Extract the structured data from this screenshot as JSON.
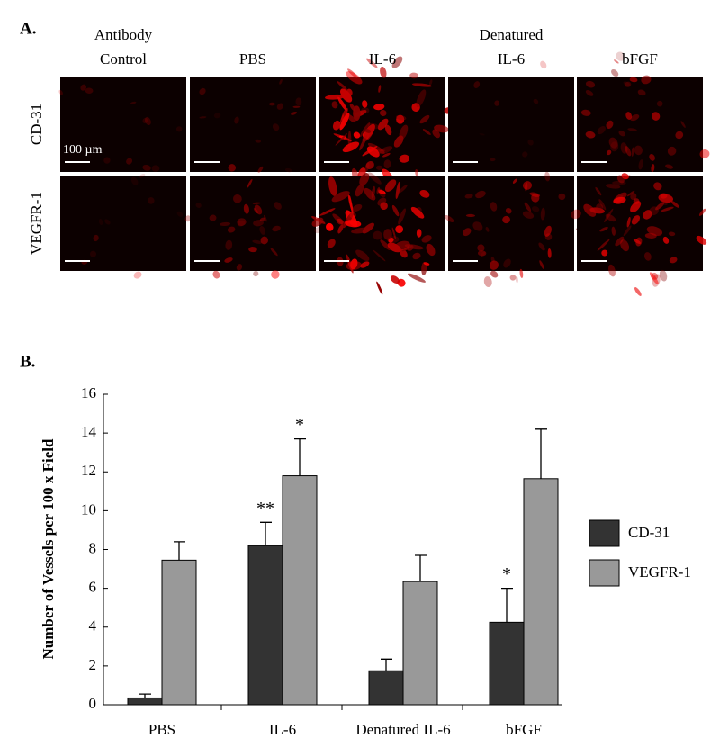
{
  "panel_a": {
    "label": "A.",
    "columns": [
      [
        "Antibody",
        "Control"
      ],
      [
        "PBS"
      ],
      [
        "IL-6"
      ],
      [
        "Denatured",
        "IL-6"
      ],
      [
        "bFGF"
      ]
    ],
    "rows": [
      "CD-31",
      "VEGFR-1"
    ],
    "scale_label": "100 µm"
  },
  "chart_data": {
    "type": "bar",
    "panel_label": "B.",
    "y_label": "Number of Vessels per 100 x Field",
    "categories": [
      "PBS",
      "IL-6",
      "Denatured IL-6",
      "bFGF"
    ],
    "series": [
      {
        "name": "CD-31",
        "color": "#333333",
        "values": [
          0.35,
          8.2,
          1.75,
          4.25
        ],
        "errors": [
          0.2,
          1.2,
          0.6,
          1.75
        ],
        "annotations": [
          null,
          "**",
          null,
          "*"
        ]
      },
      {
        "name": "VEGFR-1",
        "color": "#999999",
        "values": [
          7.45,
          11.8,
          6.35,
          11.65
        ],
        "errors": [
          0.95,
          1.9,
          1.35,
          2.55
        ],
        "annotations": [
          null,
          "*",
          null,
          null
        ]
      }
    ],
    "ylim": [
      0,
      16
    ],
    "yticks": [
      0,
      2,
      4,
      6,
      8,
      10,
      12,
      14,
      16
    ],
    "grid": false,
    "legend": "right"
  }
}
